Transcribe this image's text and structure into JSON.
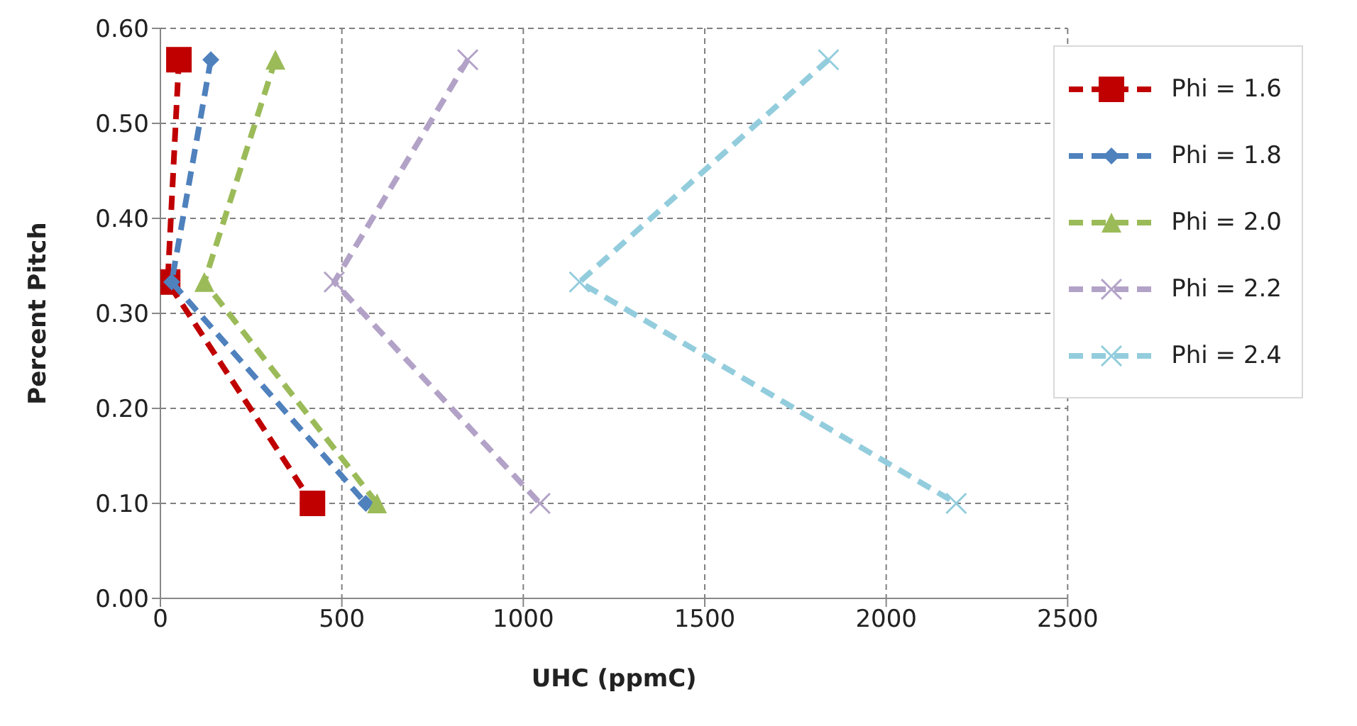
{
  "chart_data": {
    "type": "line",
    "xlabel": "UHC (ppmC)",
    "ylabel": "Percent Pitch",
    "xlim": [
      0,
      2500
    ],
    "xticks": [
      0,
      500,
      1000,
      1500,
      2000,
      2500
    ],
    "ylim": [
      0,
      0.6
    ],
    "yticks": [
      {
        "value": 0,
        "label": "0.00"
      },
      {
        "value": 0.1,
        "label": "0.10"
      },
      {
        "value": 0.2,
        "label": "0.20"
      },
      {
        "value": 0.3,
        "label": "0.30"
      },
      {
        "value": 0.4,
        "label": "0.40"
      },
      {
        "value": 0.5,
        "label": "0.50"
      },
      {
        "value": 0.6,
        "label": "0.60"
      }
    ],
    "grid": true,
    "legend": "top right",
    "line_style": "dashed",
    "series": [
      {
        "name": "Phi = 1.6",
        "color": "#c00000",
        "marker": "square",
        "x": [
          51,
          20,
          419
        ],
        "values": [
          0.567,
          0.333,
          0.1
        ]
      },
      {
        "name": "Phi = 1.8",
        "color": "#4f81bd",
        "marker": "diamond",
        "x": [
          139,
          31,
          566
        ],
        "values": [
          0.567,
          0.333,
          0.1
        ]
      },
      {
        "name": "Phi = 2.0",
        "color": "#9bbb59",
        "marker": "triangle",
        "x": [
          317,
          121,
          597
        ],
        "values": [
          0.567,
          0.333,
          0.1
        ]
      },
      {
        "name": "Phi = 2.2",
        "color": "#b3a2c7",
        "marker": "cross",
        "x": [
          847,
          479,
          1046
        ],
        "values": [
          0.567,
          0.333,
          0.1
        ]
      },
      {
        "name": "Phi = 2.4",
        "color": "#93cddd",
        "marker": "cross",
        "x": [
          1841,
          1155,
          2193
        ],
        "values": [
          0.567,
          0.333,
          0.1
        ]
      }
    ]
  }
}
